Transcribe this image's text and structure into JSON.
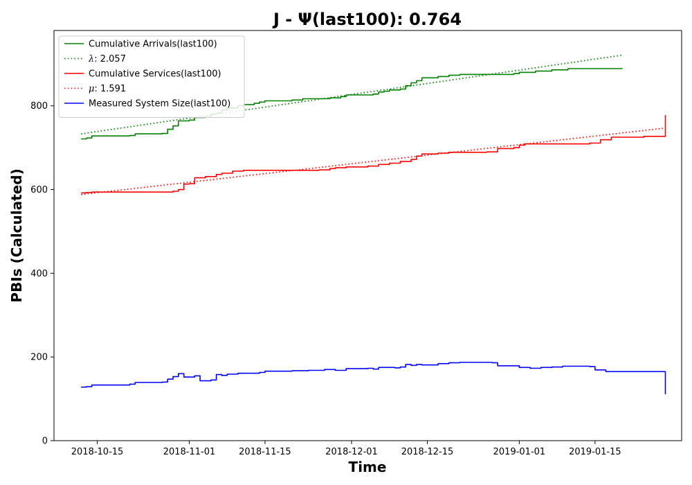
{
  "chart_data": {
    "type": "line",
    "title": "J -  Ψ(last100): 0.764",
    "xlabel": "Time",
    "ylabel": "PBIs (Calculated)",
    "x_type": "date",
    "xlim": [
      "2018-10-07",
      "2019-01-31"
    ],
    "ylim": [
      0,
      980
    ],
    "x_ticks": [
      "2018-10-15",
      "2018-11-01",
      "2018-11-15",
      "2018-12-01",
      "2018-12-15",
      "2019-01-01",
      "2019-01-15"
    ],
    "y_ticks": [
      0,
      200,
      400,
      600,
      800
    ],
    "grid": false,
    "legend_position": "top-left",
    "series": [
      {
        "name": "Cumulative Arrivals(last100)",
        "color": "#008000",
        "style": "solid",
        "step": true,
        "points": [
          [
            "2018-10-12",
            721
          ],
          [
            "2018-10-13",
            723
          ],
          [
            "2018-10-14",
            728
          ],
          [
            "2018-10-21",
            729
          ],
          [
            "2018-10-22",
            733
          ],
          [
            "2018-10-27",
            734
          ],
          [
            "2018-10-28",
            744
          ],
          [
            "2018-10-29",
            752
          ],
          [
            "2018-10-30",
            764
          ],
          [
            "2018-11-01",
            766
          ],
          [
            "2018-11-02",
            772
          ],
          [
            "2018-11-04",
            773
          ],
          [
            "2018-11-05",
            780
          ],
          [
            "2018-11-06",
            783
          ],
          [
            "2018-11-07",
            790
          ],
          [
            "2018-11-08",
            795
          ],
          [
            "2018-11-10",
            800
          ],
          [
            "2018-11-11",
            803
          ],
          [
            "2018-11-13",
            806
          ],
          [
            "2018-11-14",
            809
          ],
          [
            "2018-11-15",
            812
          ],
          [
            "2018-11-20",
            814
          ],
          [
            "2018-11-22",
            817
          ],
          [
            "2018-11-27",
            819
          ],
          [
            "2018-11-29",
            822
          ],
          [
            "2018-11-30",
            826
          ],
          [
            "2018-12-05",
            828
          ],
          [
            "2018-12-06",
            833
          ],
          [
            "2018-12-07",
            835
          ],
          [
            "2018-12-08",
            838
          ],
          [
            "2018-12-10",
            840
          ],
          [
            "2018-12-11",
            848
          ],
          [
            "2018-12-12",
            855
          ],
          [
            "2018-12-13",
            860
          ],
          [
            "2018-12-14",
            867
          ],
          [
            "2018-12-17",
            870
          ],
          [
            "2018-12-19",
            873
          ],
          [
            "2018-12-21",
            875
          ],
          [
            "2018-12-31",
            877
          ],
          [
            "2019-01-01",
            880
          ],
          [
            "2019-01-04",
            883
          ],
          [
            "2019-01-07",
            886
          ],
          [
            "2019-01-10",
            889
          ],
          [
            "2019-01-20",
            890
          ]
        ]
      },
      {
        "name": "λ: 2.057",
        "legend_math": "λ",
        "legend_rest": ": 2.057",
        "color": "#008000",
        "style": "dotted",
        "points": [
          [
            "2018-10-12",
            733
          ],
          [
            "2019-01-20",
            921
          ]
        ]
      },
      {
        "name": "Cumulative Services(last100)",
        "color": "#ff0000",
        "style": "solid",
        "step": true,
        "points": [
          [
            "2018-10-12",
            592
          ],
          [
            "2018-10-13",
            593
          ],
          [
            "2018-10-14",
            594
          ],
          [
            "2018-10-29",
            596
          ],
          [
            "2018-10-30",
            600
          ],
          [
            "2018-10-31",
            613
          ],
          [
            "2018-11-01",
            614
          ],
          [
            "2018-11-02",
            628
          ],
          [
            "2018-11-04",
            631
          ],
          [
            "2018-11-06",
            636
          ],
          [
            "2018-11-07",
            639
          ],
          [
            "2018-11-09",
            644
          ],
          [
            "2018-11-11",
            646
          ],
          [
            "2018-11-25",
            647
          ],
          [
            "2018-11-27",
            650
          ],
          [
            "2018-11-28",
            652
          ],
          [
            "2018-11-30",
            654
          ],
          [
            "2018-12-04",
            656
          ],
          [
            "2018-12-06",
            660
          ],
          [
            "2018-12-08",
            663
          ],
          [
            "2018-12-10",
            667
          ],
          [
            "2018-12-12",
            672
          ],
          [
            "2018-12-13",
            680
          ],
          [
            "2018-12-14",
            685
          ],
          [
            "2018-12-17",
            687
          ],
          [
            "2018-12-19",
            689
          ],
          [
            "2018-12-26",
            690
          ],
          [
            "2018-12-28",
            698
          ],
          [
            "2018-12-31",
            700
          ],
          [
            "2019-01-01",
            706
          ],
          [
            "2019-01-02",
            709
          ],
          [
            "2019-01-14",
            711
          ],
          [
            "2019-01-16",
            719
          ],
          [
            "2019-01-18",
            725
          ],
          [
            "2019-01-24",
            727
          ],
          [
            "2019-01-28",
            730
          ],
          [
            "2019-01-28",
            778
          ]
        ]
      },
      {
        "name": "μ: 1.591",
        "legend_math": "μ",
        "legend_rest": ": 1.591",
        "color": "#ff0000",
        "style": "dotted",
        "points": [
          [
            "2018-10-12",
            588
          ],
          [
            "2019-01-28",
            747
          ]
        ]
      },
      {
        "name": "Measured System Size(last100)",
        "color": "#0000ff",
        "style": "solid",
        "step": true,
        "points": [
          [
            "2018-10-12",
            128
          ],
          [
            "2018-10-13",
            129
          ],
          [
            "2018-10-14",
            133
          ],
          [
            "2018-10-21",
            135
          ],
          [
            "2018-10-22",
            139
          ],
          [
            "2018-10-27",
            140
          ],
          [
            "2018-10-28",
            147
          ],
          [
            "2018-10-29",
            153
          ],
          [
            "2018-10-30",
            160
          ],
          [
            "2018-10-31",
            152
          ],
          [
            "2018-11-02",
            155
          ],
          [
            "2018-11-03",
            143
          ],
          [
            "2018-11-05",
            145
          ],
          [
            "2018-11-06",
            158
          ],
          [
            "2018-11-07",
            156
          ],
          [
            "2018-11-08",
            159
          ],
          [
            "2018-11-10",
            161
          ],
          [
            "2018-11-14",
            163
          ],
          [
            "2018-11-15",
            166
          ],
          [
            "2018-11-20",
            167
          ],
          [
            "2018-11-23",
            168
          ],
          [
            "2018-11-26",
            170
          ],
          [
            "2018-11-28",
            168
          ],
          [
            "2018-11-30",
            172
          ],
          [
            "2018-12-04",
            173
          ],
          [
            "2018-12-05",
            171
          ],
          [
            "2018-12-06",
            175
          ],
          [
            "2018-12-09",
            174
          ],
          [
            "2018-12-10",
            176
          ],
          [
            "2018-12-11",
            182
          ],
          [
            "2018-12-12",
            180
          ],
          [
            "2018-12-13",
            182
          ],
          [
            "2018-12-14",
            181
          ],
          [
            "2018-12-17",
            184
          ],
          [
            "2018-12-19",
            186
          ],
          [
            "2018-12-21",
            187
          ],
          [
            "2018-12-27",
            186
          ],
          [
            "2018-12-28",
            179
          ],
          [
            "2019-01-01",
            175
          ],
          [
            "2019-01-03",
            173
          ],
          [
            "2019-01-05",
            175
          ],
          [
            "2019-01-07",
            176
          ],
          [
            "2019-01-09",
            178
          ],
          [
            "2019-01-14",
            177
          ],
          [
            "2019-01-15",
            169
          ],
          [
            "2019-01-17",
            165
          ],
          [
            "2019-01-28",
            163
          ],
          [
            "2019-01-28",
            111
          ]
        ]
      }
    ]
  }
}
